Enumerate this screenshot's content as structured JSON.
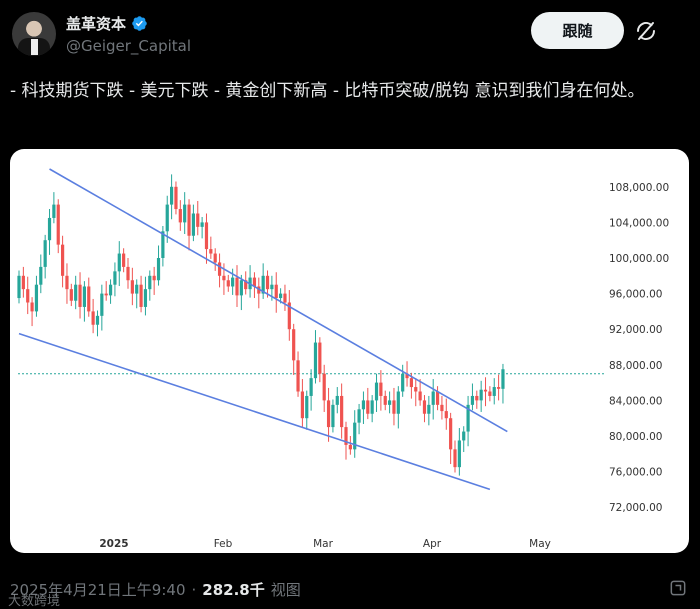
{
  "author": {
    "name": "盖革资本",
    "handle": "@Geiger_Capital",
    "verified": true
  },
  "follow_label": "跟随",
  "tweet_text": "- 科技期货下跌 - 美元下跌 - 黄金创下新高 - 比特币突破/脱钩 意识到我们身在何处。",
  "footer": {
    "timestamp": "2025年4月21日上午9:40",
    "separator": "·",
    "views_count": "282.8千",
    "views_label": "视图"
  },
  "watermark": "大数跨境",
  "colors": {
    "up_candle": "#26a69a",
    "down_candle": "#ef5350",
    "trendline": "#5b7fe0",
    "dotted_level": "#26a69a",
    "verified": "#1d9bf0"
  },
  "icons": {
    "verified": "verified-badge-icon",
    "grok": "grok-icon",
    "share": "share-icon"
  },
  "chart_data": {
    "type": "candlestick",
    "title": "",
    "x_tick_labels": [
      "2025",
      "Feb",
      "Mar",
      "Apr",
      "May"
    ],
    "y_tick_labels": [
      "108,000.00",
      "104,000.00",
      "100,000.00",
      "96,000.00",
      "92,000.00",
      "88,000.00",
      "84,000.00",
      "80,000.00",
      "76,000.00",
      "72,000.00"
    ],
    "ylim": [
      70000,
      110000
    ],
    "current_level_line": 87000,
    "candles_close": [
      98000,
      96500,
      95000,
      94000,
      97000,
      99000,
      102000,
      104500,
      106000,
      101500,
      98000,
      96500,
      95200,
      97000,
      94500,
      96800,
      94000,
      92500,
      93500,
      96000,
      95800,
      97000,
      98500,
      100500,
      99000,
      97500,
      96000,
      97000,
      94500,
      96500,
      98000,
      97500,
      100000,
      103000,
      106000,
      108000,
      105500,
      104000,
      106000,
      102500,
      105000,
      103500,
      104000,
      101000,
      100500,
      99500,
      98000,
      97500,
      96800,
      97800,
      95800,
      97500,
      96500,
      97800,
      96800,
      96000,
      98000,
      96500,
      97000,
      95500,
      96000,
      95000,
      92000,
      88500,
      85000,
      82000,
      84500,
      86500,
      90500,
      87000,
      84000,
      81000,
      83500,
      84500,
      81000,
      79000,
      78500,
      81500,
      83000,
      84000,
      82500,
      84000,
      86000,
      84500,
      83500,
      84000,
      82500,
      85000,
      87000,
      86500,
      85500,
      85000,
      84000,
      82500,
      83500,
      85000,
      83500,
      82800,
      82000,
      78500,
      76500,
      79500,
      80500,
      83500,
      84500,
      84000,
      85200,
      85000,
      84500,
      85500,
      85300,
      87500
    ],
    "trendlines": [
      {
        "name": "upper",
        "from": [
          7,
          110000
        ],
        "to": [
          112,
          80500
        ]
      },
      {
        "name": "lower",
        "from": [
          0,
          91500
        ],
        "to": [
          108,
          74000
        ]
      }
    ]
  }
}
